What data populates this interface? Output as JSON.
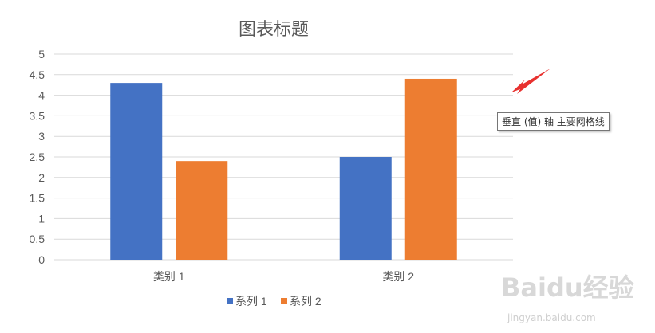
{
  "chart_data": {
    "type": "bar",
    "title": "图表标题",
    "categories": [
      "类别 1",
      "类别 2"
    ],
    "series": [
      {
        "name": "系列 1",
        "values": [
          4.3,
          2.5
        ],
        "color": "#4472C4"
      },
      {
        "name": "系列 2",
        "values": [
          2.4,
          4.4
        ],
        "color": "#ED7D31"
      }
    ],
    "ylim": [
      0,
      5
    ],
    "yticks": [
      "0",
      "0.5",
      "1",
      "1.5",
      "2",
      "2.5",
      "3",
      "3.5",
      "4",
      "4.5",
      "5"
    ],
    "grid": true,
    "legend": "bottom"
  },
  "tooltip": "垂直 (值) 轴 主要网格线",
  "arrow_color": "#E8312F",
  "watermark": {
    "logo": "Baidu经验",
    "url": "jingyan.baidu.com"
  }
}
